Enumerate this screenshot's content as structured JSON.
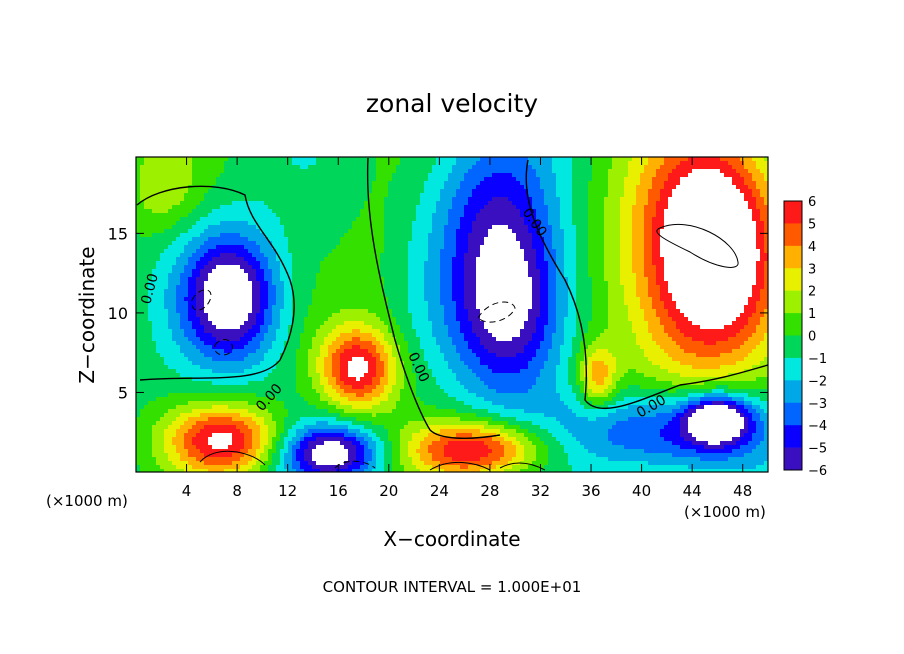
{
  "chart_data": {
    "type": "heatmap",
    "title": "zonal velocity",
    "xlabel": "X−coordinate",
    "ylabel": "Z−coordinate",
    "x_unit_left": "(×1000 m)",
    "x_unit_right": "(×1000 m)",
    "footer": "CONTOUR INTERVAL = 1.000E+01",
    "xlim": [
      0,
      50
    ],
    "ylim": [
      0,
      19.8
    ],
    "x_ticks": [
      4,
      8,
      12,
      16,
      20,
      24,
      28,
      32,
      36,
      40,
      44,
      48
    ],
    "y_ticks": [
      5,
      10,
      15
    ],
    "colorbar": {
      "ticks": [
        6,
        5,
        4,
        3,
        2,
        1,
        0,
        -1,
        -2,
        -3,
        -4,
        -5,
        -6
      ],
      "tick_labels": [
        "6",
        "5",
        "4",
        "3",
        "2",
        "1",
        "0",
        "−1",
        "−2",
        "−3",
        "−4",
        "−5",
        "−6"
      ],
      "range": [
        -6,
        6
      ]
    },
    "contour_label": "0.00",
    "features": [
      {
        "x": 7.5,
        "z": 11.0,
        "rx": 3.8,
        "rz": 4.0,
        "v": -7
      },
      {
        "x": 29.5,
        "z": 10.5,
        "rx": 4.5,
        "rz": 5.5,
        "v": -7
      },
      {
        "x": 17.5,
        "z": 6.5,
        "rx": 3.0,
        "rz": 2.6,
        "v": 6.5
      },
      {
        "x": 46.0,
        "z": 15.0,
        "rx": 5.0,
        "rz": 7.0,
        "v": 7
      },
      {
        "x": 43.0,
        "z": 12.0,
        "rx": 6.5,
        "rz": 8.0,
        "v": 4
      },
      {
        "x": 7.0,
        "z": 2.0,
        "rx": 4.5,
        "rz": 2.2,
        "v": 6.5
      },
      {
        "x": 27.0,
        "z": 1.4,
        "rx": 5.5,
        "rz": 1.8,
        "v": 6.5
      },
      {
        "x": 15.5,
        "z": 1.2,
        "rx": 4.0,
        "rz": 1.8,
        "v": -6.5
      },
      {
        "x": 42.0,
        "z": 2.5,
        "rx": 8.0,
        "rz": 2.6,
        "v": -5
      },
      {
        "x": 46.0,
        "z": 3.3,
        "rx": 2.5,
        "rz": 1.5,
        "v": -7
      },
      {
        "x": 28.0,
        "z": 17.0,
        "rx": 5.0,
        "rz": 5.0,
        "v": -3
      },
      {
        "x": 2.0,
        "z": 18.0,
        "rx": 3.0,
        "rz": 3.0,
        "v": 2
      },
      {
        "x": 19.0,
        "z": 12.0,
        "rx": 3.0,
        "rz": 7.0,
        "v": 0.8
      },
      {
        "x": 36.5,
        "z": 6.0,
        "rx": 1.5,
        "rz": 2.0,
        "v": 4
      }
    ]
  }
}
